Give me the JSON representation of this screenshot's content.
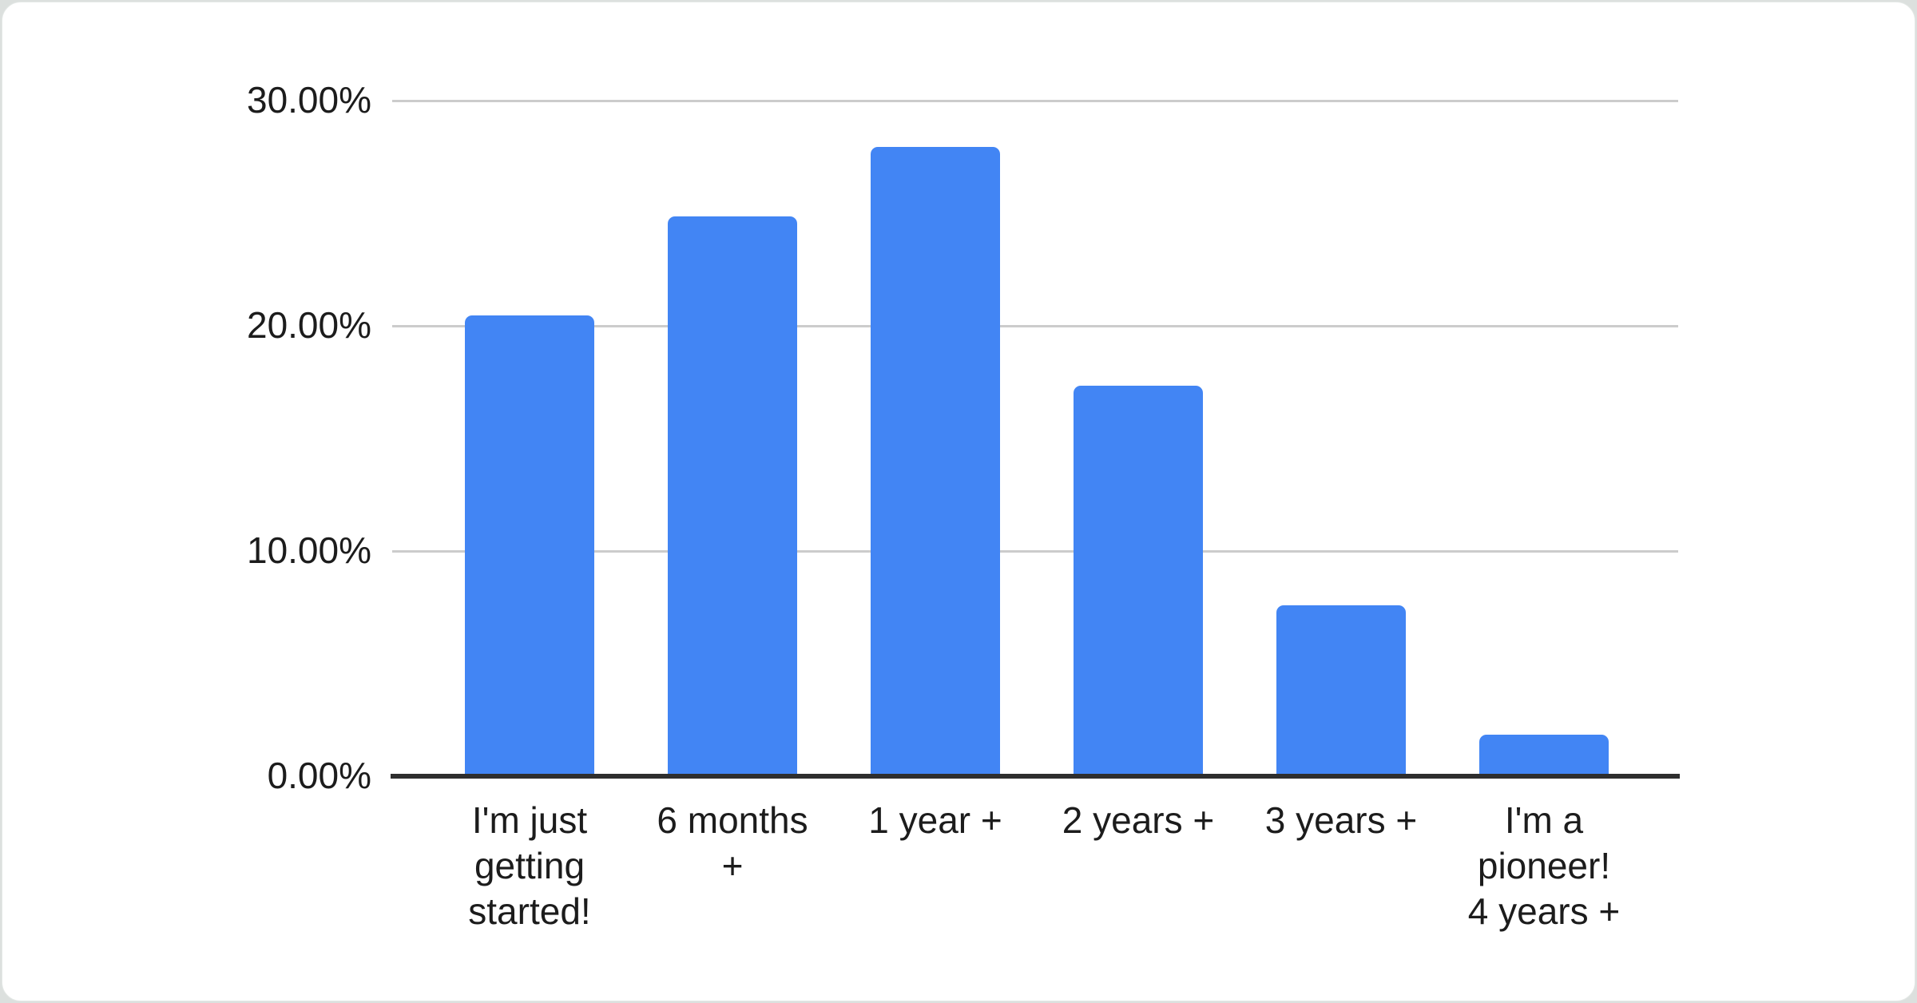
{
  "window": {
    "background_color": "#dce0de",
    "card_background_color": "#ffffff"
  },
  "chart_data": {
    "type": "bar",
    "title": "",
    "categories": [
      "I'm just\ngetting\nstarted!",
      "6 months\n+",
      "1 year +",
      "2 years +",
      "3 years +",
      "I'm a\npioneer!\n4 years +"
    ],
    "values": [
      20.42,
      24.81,
      27.92,
      17.31,
      7.56,
      1.8
    ],
    "value_unit": "%",
    "xlabel": "",
    "ylabel": "",
    "ylim": [
      0,
      30
    ],
    "y_ticks": [
      0,
      10,
      20,
      30
    ],
    "y_tick_labels": [
      "0.00%",
      "10.00%",
      "20.00%",
      "30.00%"
    ],
    "grid": true,
    "legend_position": "none",
    "bar_color": "#4285f4",
    "gridline_color": "#cccccc",
    "axis_line_color": "#2e2e2e",
    "label_color": "#1c1c1c"
  }
}
